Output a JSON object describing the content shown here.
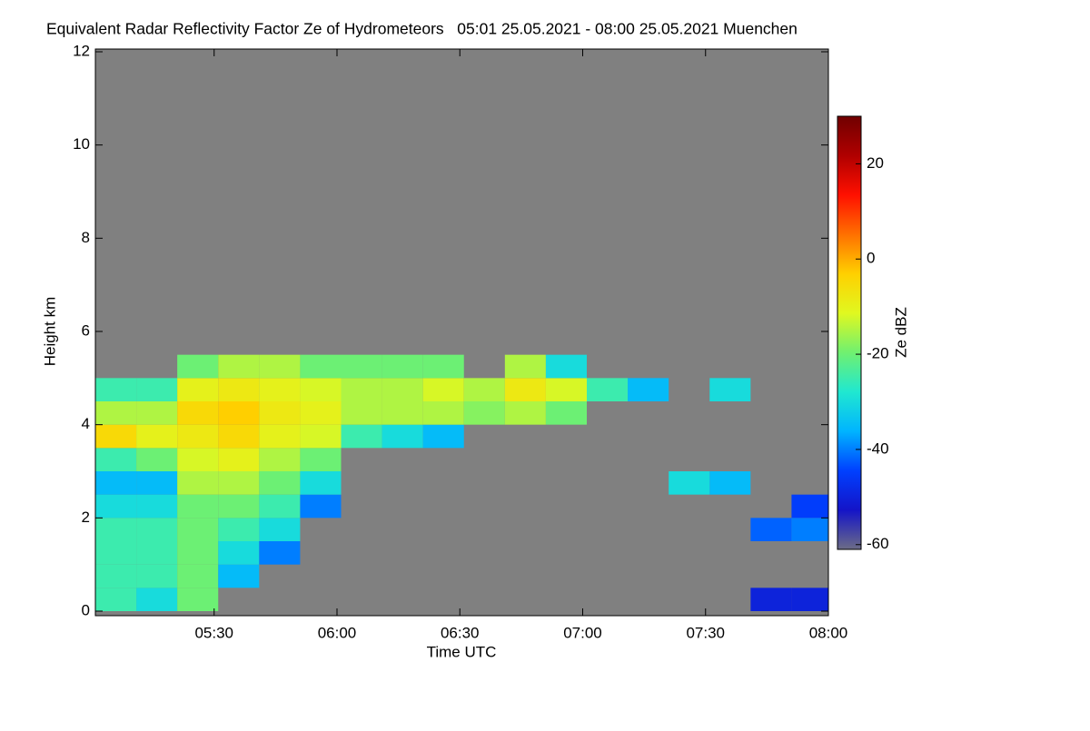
{
  "chart_data": {
    "type": "heatmap",
    "title": "Equivalent Radar Reflectivity Factor Ze of Hydrometeors   05:01 25.05.2021 - 08:00 25.05.2021 Muenchen",
    "xlabel": "Time UTC",
    "ylabel": "Height km",
    "colorbar_label": "Ze dBZ",
    "xlim": [
      301,
      480
    ],
    "xticks": [
      {
        "value": 330,
        "label": "05:30"
      },
      {
        "value": 360,
        "label": "06:00"
      },
      {
        "value": 390,
        "label": "06:30"
      },
      {
        "value": 420,
        "label": "07:00"
      },
      {
        "value": 450,
        "label": "07:30"
      },
      {
        "value": 480,
        "label": "08:00"
      }
    ],
    "ylim": [
      0,
      12
    ],
    "yticks": [
      0,
      2,
      4,
      6,
      8,
      10,
      12
    ],
    "zlim": [
      -61,
      30
    ],
    "zticks": [
      -60,
      -40,
      -20,
      0,
      20
    ],
    "background": "#808080",
    "colorscale": [
      "#6c6c86",
      "#1414c8",
      "#0040ff",
      "#00b4ff",
      "#20e8d0",
      "#70f070",
      "#e0f820",
      "#ffd000",
      "#ff7000",
      "#ff1000",
      "#b00000",
      "#700000"
    ],
    "x": [
      306,
      316,
      326,
      336,
      346,
      356,
      366,
      376,
      386,
      396,
      406,
      416,
      426,
      436,
      446,
      456,
      466,
      476
    ],
    "y": [
      0.25,
      0.75,
      1.25,
      1.75,
      2.25,
      2.75,
      3.25,
      3.75,
      4.25,
      4.75,
      5.25,
      5.75
    ],
    "z": [
      [
        -25,
        -30,
        -20,
        null,
        null,
        null,
        null,
        null,
        null,
        null,
        null,
        null,
        null,
        null,
        null,
        null,
        -50,
        -50
      ],
      [
        -25,
        -25,
        -20,
        -35,
        null,
        null,
        null,
        null,
        null,
        null,
        null,
        null,
        null,
        null,
        null,
        null,
        null,
        null
      ],
      [
        -25,
        -25,
        -20,
        -30,
        -40,
        null,
        null,
        null,
        null,
        null,
        null,
        null,
        null,
        null,
        null,
        null,
        null,
        null
      ],
      [
        -25,
        -25,
        -20,
        -25,
        -30,
        null,
        null,
        null,
        null,
        null,
        null,
        null,
        null,
        null,
        null,
        null,
        -42,
        -40
      ],
      [
        -30,
        -30,
        -20,
        -20,
        -25,
        -40,
        null,
        null,
        null,
        null,
        null,
        null,
        null,
        null,
        null,
        null,
        null,
        -45
      ],
      [
        -35,
        -35,
        -15,
        -15,
        -20,
        -30,
        null,
        null,
        null,
        null,
        null,
        null,
        null,
        null,
        -30,
        -35,
        null,
        null
      ],
      [
        -25,
        -20,
        -12,
        -10,
        -15,
        -20,
        null,
        null,
        null,
        null,
        null,
        null,
        null,
        null,
        null,
        null,
        null,
        null
      ],
      [
        -5,
        -10,
        -8,
        -5,
        -10,
        -12,
        -25,
        -30,
        -35,
        null,
        null,
        null,
        null,
        null,
        null,
        null,
        null,
        null
      ],
      [
        -15,
        -15,
        -5,
        -3,
        -8,
        -10,
        -15,
        -15,
        -15,
        -18,
        -15,
        -20,
        null,
        null,
        null,
        null,
        null,
        null
      ],
      [
        -25,
        -25,
        -10,
        -8,
        -10,
        -12,
        -15,
        -15,
        -12,
        -15,
        -8,
        -12,
        -25,
        -35,
        null,
        -30,
        null,
        null
      ],
      [
        null,
        null,
        -20,
        -15,
        -15,
        -20,
        -20,
        -20,
        -20,
        null,
        -15,
        -30,
        null,
        null,
        null,
        null,
        null,
        null
      ],
      [
        null,
        null,
        null,
        null,
        null,
        null,
        null,
        null,
        null,
        null,
        null,
        null,
        null,
        null,
        null,
        null,
        null,
        null
      ]
    ]
  }
}
